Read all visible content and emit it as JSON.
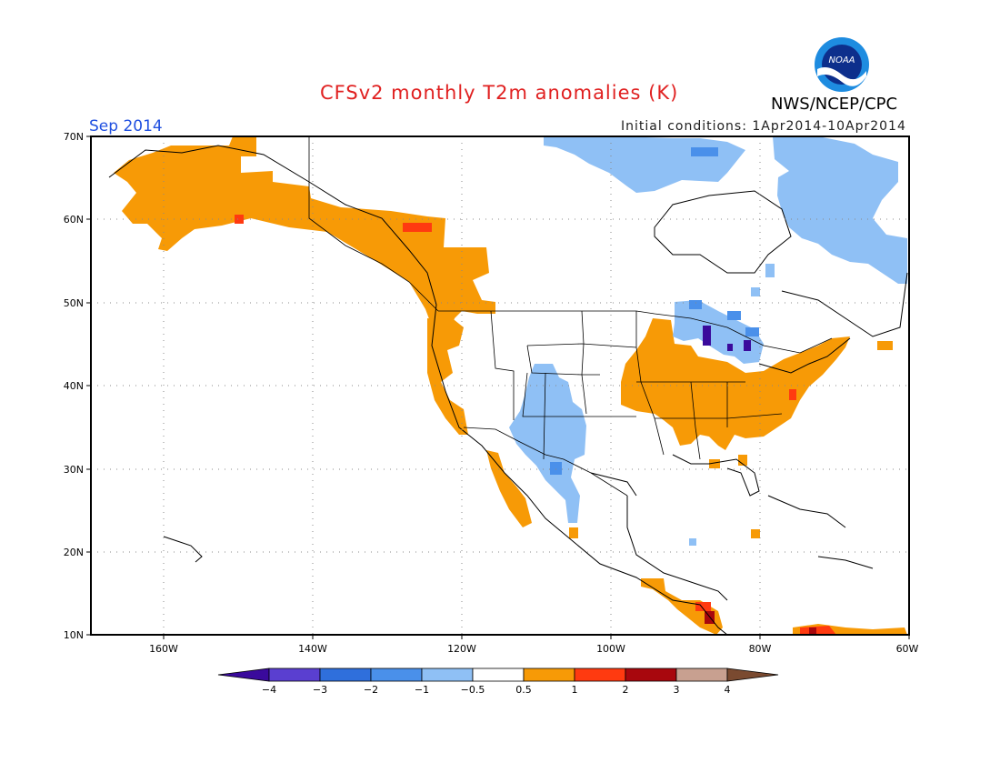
{
  "title": "CFSv2 monthly T2m anomalies (K)",
  "valid_month": "Sep 2014",
  "initial_conditions": "Initial conditions: 1Apr2014-10Apr2014",
  "agency": "NWS/NCEP/CPC",
  "logo_text": "NOAA",
  "lat_labels": [
    "70N",
    "60N",
    "50N",
    "40N",
    "30N",
    "20N",
    "10N"
  ],
  "lon_labels": [
    "160W",
    "140W",
    "120W",
    "100W",
    "80W",
    "60W"
  ],
  "colorbar": {
    "labels": [
      "−4",
      "−3",
      "−2",
      "−1",
      "−0.5",
      "0.5",
      "1",
      "2",
      "3",
      "4"
    ],
    "colors": [
      "#3a0a9c",
      "#5a3fd0",
      "#2f6fdc",
      "#4a90ea",
      "#8fc0f5",
      "#ffffff",
      "#f79a06",
      "#ff3a10",
      "#a8070d",
      "#c8a090",
      "#7a4a30"
    ]
  },
  "legend_colors": {
    "warm_05_1": "#f79a06",
    "warm_1_2": "#ff3a10",
    "warm_2_3": "#a8070d",
    "cool_05_1": "#8fc0f5",
    "cool_1_2": "#4a90ea",
    "cool_2_3": "#2f6fdc",
    "cool_4": "#3a0a9c"
  }
}
